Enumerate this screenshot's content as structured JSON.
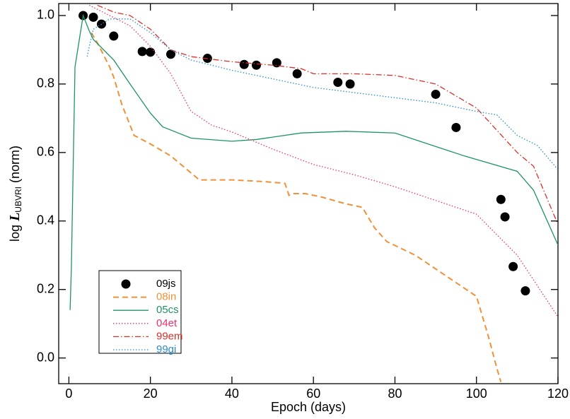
{
  "chart_data": {
    "type": "line",
    "xlabel": "Epoch (days)",
    "ylabel": {
      "prefix": "log",
      "symbol": "L",
      "subscript": "UBVRI",
      "suffix": "(norm)"
    },
    "xlim": [
      -2.5,
      120
    ],
    "ylim": [
      -0.075,
      1.035
    ],
    "xticks": [
      0,
      20,
      40,
      60,
      80,
      100,
      120
    ],
    "yticks": [
      {
        "value": 0,
        "label": "0.0"
      },
      {
        "value": 0.2,
        "label": "0.2"
      },
      {
        "value": 0.4,
        "label": "0.4"
      },
      {
        "value": 0.6,
        "label": "0.6"
      },
      {
        "value": 0.8,
        "label": "0.8"
      },
      {
        "value": 1,
        "label": "1.0"
      }
    ],
    "legend": "lower left",
    "series": [
      {
        "name": "09js",
        "color": "#000000",
        "style": "markers",
        "x": [
          3.5,
          6,
          8,
          11,
          18,
          20,
          25,
          34,
          43,
          46,
          51,
          56,
          66,
          69,
          90,
          95,
          106,
          107,
          109,
          112
        ],
        "values": [
          1.0,
          0.995,
          0.975,
          0.94,
          0.895,
          0.893,
          0.887,
          0.875,
          0.857,
          0.855,
          0.862,
          0.83,
          0.805,
          0.8,
          0.77,
          0.673,
          0.463,
          0.412,
          0.267,
          0.196
        ]
      },
      {
        "name": "08in",
        "color": "#f0913a",
        "style": "dashed",
        "x": [
          5.5,
          7,
          10,
          11,
          13,
          16,
          20,
          25,
          32,
          40,
          48,
          53,
          54,
          55,
          58,
          62,
          68,
          72,
          75,
          78,
          85,
          95,
          100,
          103,
          105,
          106
        ],
        "values": [
          0.95,
          0.92,
          0.85,
          0.82,
          0.74,
          0.65,
          0.625,
          0.59,
          0.52,
          0.52,
          0.515,
          0.51,
          0.475,
          0.48,
          0.48,
          0.47,
          0.45,
          0.44,
          0.38,
          0.34,
          0.3,
          0.22,
          0.18,
          0.06,
          -0.03,
          -0.07
        ]
      },
      {
        "name": "05cs",
        "color": "#1f9463",
        "style": "solid",
        "x": [
          0.3,
          0.6,
          1.5,
          3.5,
          5,
          6,
          11,
          15,
          20,
          23,
          30,
          40,
          46,
          57,
          68,
          80,
          97,
          110,
          114,
          120
        ],
        "values": [
          0.14,
          0.26,
          0.85,
          1.0,
          0.955,
          0.93,
          0.87,
          0.8,
          0.715,
          0.675,
          0.642,
          0.633,
          0.638,
          0.657,
          0.662,
          0.657,
          0.59,
          0.545,
          0.49,
          0.33
        ]
      },
      {
        "name": "04et",
        "color": "#e8336d",
        "style": "dotted",
        "x": [
          5,
          10,
          15,
          20,
          25,
          30,
          35,
          40,
          50,
          60,
          70,
          80,
          90,
          100,
          110,
          120
        ],
        "values": [
          1.03,
          1.0,
          0.97,
          0.91,
          0.83,
          0.72,
          0.68,
          0.66,
          0.61,
          0.565,
          0.535,
          0.5,
          0.46,
          0.42,
          0.3,
          0.12
        ]
      },
      {
        "name": "99em",
        "color": "#d9302b",
        "style": "dashdot",
        "x": [
          7,
          11,
          15,
          20,
          25,
          30,
          40,
          50,
          57,
          60,
          70,
          80,
          90,
          100,
          110,
          114,
          120
        ],
        "values": [
          1.03,
          1.01,
          1.0,
          0.96,
          0.9,
          0.88,
          0.865,
          0.855,
          0.845,
          0.83,
          0.83,
          0.825,
          0.8,
          0.73,
          0.6,
          0.56,
          0.39
        ]
      },
      {
        "name": "99gi",
        "color": "#2a8ec9",
        "style": "dotted",
        "x": [
          4.5,
          5,
          6,
          10,
          15,
          20,
          25,
          30,
          40,
          50,
          60,
          70,
          80,
          90,
          100,
          105,
          110,
          115,
          120
        ],
        "values": [
          0.88,
          0.91,
          0.96,
          0.99,
          0.99,
          0.95,
          0.9,
          0.87,
          0.84,
          0.815,
          0.79,
          0.775,
          0.76,
          0.745,
          0.72,
          0.71,
          0.65,
          0.62,
          0.55
        ]
      }
    ]
  }
}
